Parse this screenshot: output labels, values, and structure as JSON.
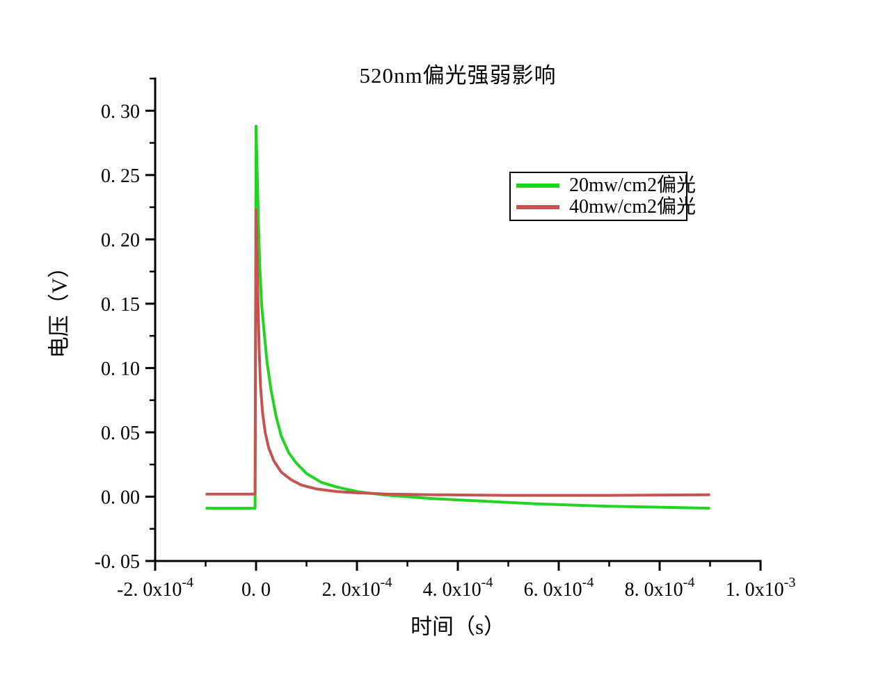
{
  "chart_data": {
    "type": "line",
    "title": "520nm偏光强弱影响",
    "xlabel": "时间（s）",
    "ylabel": "电压（V）",
    "xlim": [
      -0.0002,
      0.001
    ],
    "ylim": [
      -0.05,
      0.325
    ],
    "grid": false,
    "background_color": "#ffffff",
    "axis_color": "#000000",
    "legend_position": "upper-right",
    "x_ticks_major": {
      "values": [
        -0.0002,
        0.0,
        0.0002,
        0.0004,
        0.0006,
        0.0008,
        0.001
      ],
      "labels": [
        "-2. 0x10^-4",
        "0. 0",
        "2. 0x10^-4",
        "4. 0x10^-4",
        "6. 0x10^-4",
        "8. 0x10^-4",
        "1. 0x10^-3"
      ]
    },
    "x_ticks_minor": [
      -0.0001,
      0.0001,
      0.0003,
      0.0005,
      0.0007,
      0.0009
    ],
    "y_ticks_major": {
      "values": [
        -0.05,
        0.0,
        0.05,
        0.1,
        0.15,
        0.2,
        0.25,
        0.3
      ],
      "labels": [
        "-0. 05",
        "0. 00",
        "0. 05",
        "0. 10",
        "0. 15",
        "0. 20",
        "0. 25",
        "0. 30"
      ]
    },
    "y_ticks_minor": [
      -0.025,
      0.025,
      0.075,
      0.125,
      0.175,
      0.225,
      0.275,
      0.325
    ],
    "series": [
      {
        "name": "20mw/cm2偏光",
        "color": "#22d422",
        "peak_value": 0.288,
        "baseline_value": -0.009,
        "points": [
          [
            -0.0001,
            -0.009
          ],
          [
            -2e-06,
            -0.009
          ],
          [
            0.0,
            0.288
          ],
          [
            3e-06,
            0.24
          ],
          [
            5e-06,
            0.21
          ],
          [
            7e-06,
            0.182
          ],
          [
            1.1e-05,
            0.149
          ],
          [
            1.6e-05,
            0.128
          ],
          [
            2.2e-05,
            0.104
          ],
          [
            3e-05,
            0.082
          ],
          [
            4e-05,
            0.062
          ],
          [
            5e-05,
            0.047
          ],
          [
            6.5e-05,
            0.034
          ],
          [
            8e-05,
            0.026
          ],
          [
            0.0001,
            0.018
          ],
          [
            0.00013,
            0.011
          ],
          [
            0.00016,
            0.0075
          ],
          [
            0.0002,
            0.004
          ],
          [
            0.00025,
            0.0015
          ],
          [
            0.0003,
            0.0
          ],
          [
            0.00035,
            -0.0015
          ],
          [
            0.0004,
            -0.0025
          ],
          [
            0.00045,
            -0.0035
          ],
          [
            0.0005,
            -0.0045
          ],
          [
            0.00055,
            -0.0055
          ],
          [
            0.0006,
            -0.0062
          ],
          [
            0.00065,
            -0.0068
          ],
          [
            0.0007,
            -0.0074
          ],
          [
            0.00075,
            -0.0078
          ],
          [
            0.0008,
            -0.0082
          ],
          [
            0.00085,
            -0.0086
          ],
          [
            0.0009,
            -0.009
          ]
        ]
      },
      {
        "name": "40mw/cm2偏光",
        "color": "#c85252",
        "peak_value": 0.223,
        "baseline_value": 0.002,
        "points": [
          [
            -0.0001,
            0.002
          ],
          [
            -2e-06,
            0.002
          ],
          [
            0.0,
            0.223
          ],
          [
            2e-06,
            0.19
          ],
          [
            4e-06,
            0.15
          ],
          [
            6e-06,
            0.115
          ],
          [
            9e-06,
            0.085
          ],
          [
            1.3e-05,
            0.065
          ],
          [
            1.8e-05,
            0.05
          ],
          [
            2.5e-05,
            0.038
          ],
          [
            3.5e-05,
            0.028
          ],
          [
            5e-05,
            0.019
          ],
          [
            7e-05,
            0.013
          ],
          [
            9e-05,
            0.009
          ],
          [
            0.00012,
            0.006
          ],
          [
            0.00016,
            0.004
          ],
          [
            0.0002,
            0.003
          ],
          [
            0.00026,
            0.002
          ],
          [
            0.00035,
            0.0015
          ],
          [
            0.0005,
            0.001
          ],
          [
            0.0007,
            0.001
          ],
          [
            0.0009,
            0.0015
          ]
        ]
      }
    ]
  }
}
